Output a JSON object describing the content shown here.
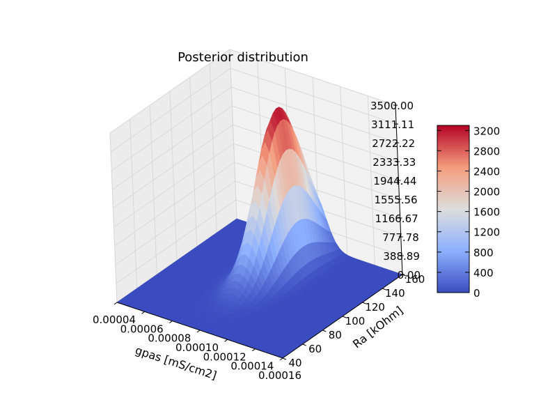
{
  "chart_data": {
    "type": "surface3d",
    "title": "Posterior distribution",
    "xlabel": "gpas [mS/cm2]",
    "ylabel": "Ra [kOhm]",
    "zlabel": "",
    "x_ticks": [
      "0.00004",
      "0.00006",
      "0.00008",
      "0.00010",
      "0.00012",
      "0.00014",
      "0.00016"
    ],
    "x_tick_values": [
      4e-05,
      6e-05,
      8e-05,
      0.0001,
      0.00012,
      0.00014,
      0.00016
    ],
    "y_ticks": [
      "40",
      "60",
      "80",
      "100",
      "120",
      "140",
      "160"
    ],
    "y_tick_values": [
      40,
      60,
      80,
      100,
      120,
      140,
      160
    ],
    "z_ticks": [
      "0.00",
      "388.89",
      "777.78",
      "1166.67",
      "1555.56",
      "1944.44",
      "2333.33",
      "2722.22",
      "3111.11",
      "3500.00"
    ],
    "z_tick_values": [
      0,
      388.89,
      777.78,
      1166.67,
      1555.56,
      1944.44,
      2333.33,
      2722.22,
      3111.11,
      3500
    ],
    "xlim": [
      4e-05,
      0.00016
    ],
    "ylim": [
      40,
      160
    ],
    "zlim": [
      0,
      3500
    ],
    "colormap": "coolwarm",
    "colorbar": {
      "ticks": [
        "0",
        "400",
        "800",
        "1200",
        "1600",
        "2000",
        "2400",
        "2800",
        "3200"
      ],
      "tick_values": [
        0,
        400,
        800,
        1200,
        1600,
        2000,
        2400,
        2800,
        3200
      ],
      "range": [
        0,
        3300
      ]
    },
    "surface": {
      "description": "Gaussian-like peak",
      "peak_value": 3300,
      "peak_gpas": 9.7e-05,
      "peak_Ra": 128,
      "sigma_gpas": 8e-06,
      "sigma_Ra": 22,
      "grid_x": [
        4e-05,
        0.00016
      ],
      "grid_y": [
        40,
        160
      ]
    },
    "grid": true
  }
}
